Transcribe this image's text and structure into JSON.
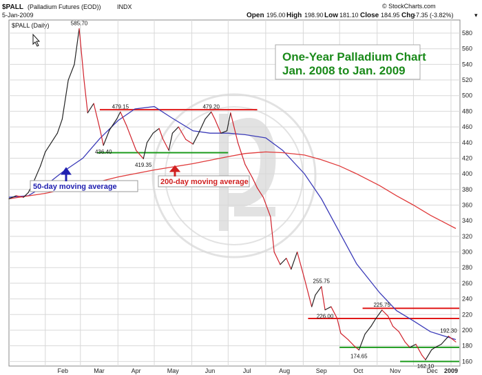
{
  "header": {
    "symbol": "$PALL",
    "name": "(Palladium Futures (EOD))",
    "exchange": "INDX",
    "date": "5-Jan-2009",
    "open_label": "Open",
    "open": "195.00",
    "high_label": "High",
    "high": "198.90",
    "low_label": "Low",
    "low": "181.10",
    "close_label": "Close",
    "close": "184.95",
    "chg_label": "Chg",
    "chg": "-7.35 (-3.82%)",
    "chg_marker": "▾",
    "brand": "© StockCharts.com",
    "panel_label": "$PALL (Daily)"
  },
  "title_box": {
    "line1": "One-Year Palladium Chart",
    "line2": "Jan. 2008 to Jan. 2009"
  },
  "labels": {
    "ma50": "50-day moving average",
    "ma200": "200-day moving average"
  },
  "colors": {
    "price_up": "#222222",
    "price_down": "#d0202a",
    "ma50": "#3a3ab8",
    "ma200": "#e03a3a",
    "support": "#1a9a1a",
    "resistance": "#e01818",
    "title": "#1a8a1a"
  },
  "chart_data": {
    "type": "line",
    "ylim": [
      155,
      595
    ],
    "y_ticks": [
      160,
      180,
      200,
      220,
      240,
      260,
      280,
      300,
      320,
      340,
      360,
      380,
      400,
      420,
      440,
      460,
      480,
      500,
      520,
      540,
      560,
      580
    ],
    "x_ticks": [
      "Feb",
      "Mar",
      "Apr",
      "May",
      "Jun",
      "Jul",
      "Aug",
      "Sep",
      "Oct",
      "Nov",
      "Dec",
      "2009"
    ],
    "series": [
      {
        "x": [
          "2008-01-02",
          "2008-01-08",
          "2008-01-14",
          "2008-01-18",
          "2008-01-23",
          "2008-01-28",
          "2008-02-01",
          "2008-02-06",
          "2008-02-11",
          "2008-02-15",
          "2008-02-20",
          "2008-02-25",
          "2008-02-29",
          "2008-03-04",
          "2008-03-07",
          "2008-03-12",
          "2008-03-17",
          "2008-03-20",
          "2008-03-25",
          "2008-03-31",
          "2008-04-03",
          "2008-04-08",
          "2008-04-11",
          "2008-04-16",
          "2008-04-22",
          "2008-04-25",
          "2008-04-30",
          "2008-05-05",
          "2008-05-08",
          "2008-05-13",
          "2008-05-16",
          "2008-05-21",
          "2008-05-27",
          "2008-06-02",
          "2008-06-06",
          "2008-06-12",
          "2008-06-17",
          "2008-06-20",
          "2008-06-25",
          "2008-06-30",
          "2008-07-03",
          "2008-07-09",
          "2008-07-15",
          "2008-07-21",
          "2008-07-25",
          "2008-07-30",
          "2008-08-05",
          "2008-08-08",
          "2008-08-13",
          "2008-08-18",
          "2008-08-22",
          "2008-08-27",
          "2008-09-02",
          "2008-09-08",
          "2008-09-11",
          "2008-09-16",
          "2008-09-19",
          "2008-09-24",
          "2008-09-29",
          "2008-10-02",
          "2008-10-08",
          "2008-10-13",
          "2008-10-17",
          "2008-10-22",
          "2008-10-27",
          "2008-10-31",
          "2008-11-05",
          "2008-11-10",
          "2008-11-14",
          "2008-11-19",
          "2008-11-24",
          "2008-11-28",
          "2008-12-03",
          "2008-12-08",
          "2008-12-11",
          "2008-12-16",
          "2008-12-19",
          "2008-12-24",
          "2008-12-30",
          "2009-01-05"
        ],
        "values": [
          368,
          372,
          370,
          376,
          392,
          410,
          428,
          440,
          452,
          470,
          520,
          540,
          585.7,
          520,
          478,
          490,
          458,
          436.4,
          456,
          470,
          479.15,
          462,
          450,
          430,
          419.35,
          440,
          452,
          458,
          445,
          430,
          452,
          460,
          444,
          438,
          450,
          470,
          479.2,
          470,
          452,
          455,
          478,
          440,
          412,
          395,
          382,
          370,
          345,
          300,
          284,
          292,
          278,
          300,
          266,
          230,
          245,
          255.75,
          226,
          230,
          215,
          196,
          188,
          180,
          174.65,
          195,
          205,
          215,
          225.75,
          218,
          205,
          198,
          185,
          178,
          182,
          168,
          162.1,
          175,
          178,
          182,
          192.3,
          184.95
        ]
      },
      {
        "name": "50-day moving average",
        "x": [
          "2008-01-02",
          "2008-01-18",
          "2008-02-01",
          "2008-02-15",
          "2008-03-03",
          "2008-03-17",
          "2008-04-01",
          "2008-04-15",
          "2008-05-01",
          "2008-05-15",
          "2008-06-02",
          "2008-06-16",
          "2008-07-01",
          "2008-07-15",
          "2008-08-01",
          "2008-08-15",
          "2008-09-02",
          "2008-09-16",
          "2008-10-01",
          "2008-10-15",
          "2008-11-03",
          "2008-11-17",
          "2008-12-01",
          "2008-12-15",
          "2009-01-05"
        ],
        "values": [
          370,
          372,
          385,
          402,
          420,
          445,
          468,
          483,
          486,
          472,
          455,
          452,
          452,
          450,
          446,
          430,
          400,
          368,
          325,
          285,
          248,
          225,
          212,
          198,
          188
        ]
      },
      {
        "name": "200-day moving average",
        "x": [
          "2008-01-02",
          "2008-02-01",
          "2008-03-03",
          "2008-04-01",
          "2008-05-01",
          "2008-06-02",
          "2008-07-01",
          "2008-07-15",
          "2008-08-01",
          "2008-08-15",
          "2008-09-02",
          "2008-09-16",
          "2008-10-01",
          "2008-10-15",
          "2008-11-03",
          "2008-11-17",
          "2008-12-01",
          "2008-12-15",
          "2009-01-05"
        ],
        "values": [
          368,
          375,
          385,
          396,
          405,
          413,
          422,
          426,
          428,
          427,
          424,
          418,
          410,
          400,
          385,
          372,
          360,
          347,
          330
        ]
      }
    ],
    "levels": [
      {
        "value": 482,
        "from": "2008-03-17",
        "to": "2008-07-25",
        "kind": "resistance"
      },
      {
        "value": 427,
        "from": "2008-03-15",
        "to": "2008-07-01",
        "kind": "support"
      },
      {
        "value": 228,
        "from": "2008-10-20",
        "to": "2009-01-10",
        "kind": "resistance"
      },
      {
        "value": 215,
        "from": "2008-09-05",
        "to": "2009-01-10",
        "kind": "resistance"
      },
      {
        "value": 178,
        "from": "2008-10-01",
        "to": "2009-01-10",
        "kind": "support"
      },
      {
        "value": 160,
        "from": "2008-11-20",
        "to": "2009-01-10",
        "kind": "support"
      }
    ],
    "annotations": [
      {
        "text": "585.70",
        "x": "2008-02-29",
        "y": 585.7,
        "pos": "above"
      },
      {
        "text": "479.15",
        "x": "2008-04-03",
        "y": 479.15,
        "pos": "above"
      },
      {
        "text": "436.40",
        "x": "2008-03-20",
        "y": 436.4,
        "pos": "below"
      },
      {
        "text": "419.35",
        "x": "2008-04-22",
        "y": 419.35,
        "pos": "below"
      },
      {
        "text": "479.20",
        "x": "2008-06-17",
        "y": 479.2,
        "pos": "above"
      },
      {
        "text": "255.75",
        "x": "2008-09-16",
        "y": 255.75,
        "pos": "above"
      },
      {
        "text": "226.00",
        "x": "2008-09-19",
        "y": 226,
        "pos": "below"
      },
      {
        "text": "225.75",
        "x": "2008-11-05",
        "y": 225.75,
        "pos": "above"
      },
      {
        "text": "174.65",
        "x": "2008-10-17",
        "y": 174.65,
        "pos": "below"
      },
      {
        "text": "162.10",
        "x": "2008-12-11",
        "y": 162.1,
        "pos": "below"
      },
      {
        "text": "192.30",
        "x": "2008-12-30",
        "y": 192.3,
        "pos": "above"
      }
    ]
  }
}
